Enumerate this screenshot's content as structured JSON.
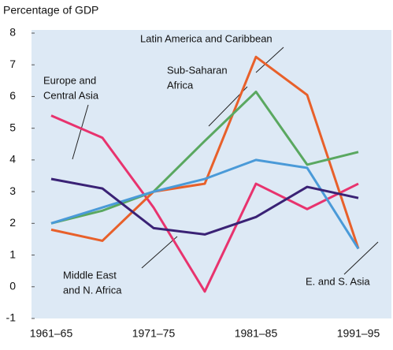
{
  "chart_data": {
    "type": "line",
    "title": "Percentage of GDP",
    "categories": [
      "1961–65",
      null,
      "1971–75",
      null,
      "1981–85",
      null,
      "1991–95"
    ],
    "ylim": [
      -1,
      8
    ],
    "yticks": [
      -1,
      0,
      1,
      2,
      3,
      4,
      5,
      6,
      7,
      8
    ],
    "series": [
      {
        "name": "Europe and Central Asia",
        "color": "#e8336e",
        "values": [
          5.4,
          4.7,
          2.5,
          -0.15,
          3.25,
          2.45,
          3.25
        ]
      },
      {
        "name": "Latin America and Caribbean",
        "color": "#e8602a",
        "values": [
          1.8,
          1.45,
          3.0,
          3.25,
          7.25,
          6.05,
          1.2
        ]
      },
      {
        "name": "Sub-Saharan Africa",
        "color": "#5aa860",
        "values": [
          2.0,
          2.4,
          3.0,
          4.6,
          6.15,
          3.85,
          4.25
        ]
      },
      {
        "name": "E. and S. Asia",
        "color": "#4a9ad8",
        "values": [
          2.0,
          2.5,
          3.0,
          3.4,
          4.0,
          3.75,
          1.2
        ]
      },
      {
        "name": "Middle East and N. Africa",
        "color": "#3a2275",
        "values": [
          3.4,
          3.1,
          1.85,
          1.65,
          2.2,
          3.15,
          2.8
        ]
      }
    ],
    "annotations": [
      {
        "lines": [
          "Europe and",
          "Central Asia"
        ]
      },
      {
        "lines": [
          "Latin America and Caribbean"
        ]
      },
      {
        "lines": [
          "Sub-Saharan",
          "Africa"
        ]
      },
      {
        "lines": [
          "E. and S. Asia"
        ]
      },
      {
        "lines": [
          "Middle East",
          "and N. Africa"
        ]
      }
    ]
  }
}
